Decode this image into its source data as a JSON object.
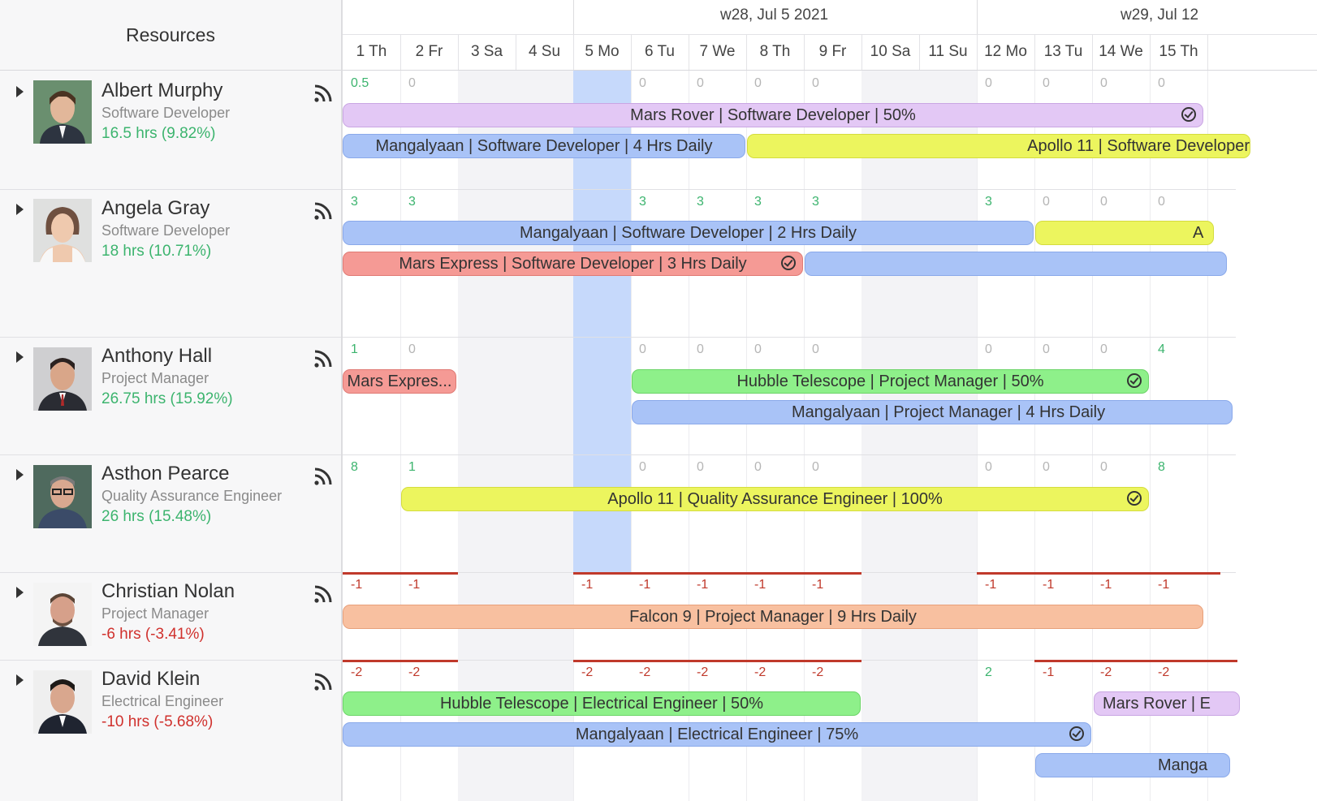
{
  "sidebar": {
    "header": "Resources"
  },
  "resources": [
    {
      "name": "Albert Murphy",
      "role": "Software Developer",
      "hours": "16.5 hrs (9.82%)",
      "hours_color": "#3cb46e"
    },
    {
      "name": "Angela Gray",
      "role": "Software Developer",
      "hours": "18 hrs (10.71%)",
      "hours_color": "#3cb46e"
    },
    {
      "name": "Anthony Hall",
      "role": "Project Manager",
      "hours": "26.75 hrs (15.92%)",
      "hours_color": "#3cb46e"
    },
    {
      "name": "Asthon Pearce",
      "role": "Quality Assurance Engineer",
      "hours": "26 hrs (15.48%)",
      "hours_color": "#3cb46e"
    },
    {
      "name": "Christian Nolan",
      "role": "Project Manager",
      "hours": "-6 hrs (-3.41%)",
      "hours_color": "#d0312d"
    },
    {
      "name": "David Klein",
      "role": "Electrical Engineer",
      "hours": "-10 hrs (-5.68%)",
      "hours_color": "#d0312d"
    }
  ],
  "weeks": [
    "w28, Jul 5 2021",
    "w29, Jul 12"
  ],
  "days": [
    "1 Th",
    "2 Fr",
    "3 Sa",
    "4 Su",
    "5 Mo",
    "6 Tu",
    "7 We",
    "8 Th",
    "9 Fr",
    "10 Sa",
    "11 Su",
    "12 Mo",
    "13 Tu",
    "14 We",
    "15 Th"
  ],
  "capacity": [
    [
      "0.5",
      "0",
      "",
      "",
      "",
      "0",
      "0",
      "0",
      "0",
      "",
      "",
      "0",
      "0",
      "0",
      "0"
    ],
    [
      "3",
      "3",
      "",
      "",
      "",
      "3",
      "3",
      "3",
      "3",
      "",
      "",
      "3",
      "0",
      "0",
      "0"
    ],
    [
      "1",
      "0",
      "",
      "",
      "",
      "0",
      "0",
      "0",
      "0",
      "",
      "",
      "0",
      "0",
      "0",
      "4"
    ],
    [
      "8",
      "1",
      "",
      "",
      "",
      "0",
      "0",
      "0",
      "0",
      "",
      "",
      "0",
      "0",
      "0",
      "8"
    ],
    [
      "-1",
      "-1",
      "",
      "",
      "-1",
      "-1",
      "-1",
      "-1",
      "-1",
      "",
      "",
      "-1",
      "-1",
      "-1",
      "-1"
    ],
    [
      "-2",
      "-2",
      "",
      "",
      "-2",
      "-2",
      "-2",
      "-2",
      "-2",
      "",
      "",
      "2",
      "-1",
      "-2",
      "-2"
    ]
  ],
  "assignments": {
    "albert_1": "Mars Rover | Software Developer | 50%",
    "albert_2": "Mangalyaan | Software Developer | 4 Hrs Daily",
    "albert_3": "Apollo 11 | Software Developer",
    "angela_1": "Mangalyaan | Software Developer | 2 Hrs Daily",
    "angela_2": "A",
    "angela_3": "Mars Express | Software Developer | 3 Hrs Daily",
    "anthony_1": "Mars Expres...",
    "anthony_2": "Hubble Telescope | Project Manager | 50%",
    "anthony_3": "Mangalyaan | Project Manager | 4 Hrs Daily",
    "asthon_1": "Apollo 11 | Quality Assurance Engineer | 100%",
    "christian_1": "Falcon 9 | Project Manager | 9 Hrs Daily",
    "david_1": "Hubble Telescope | Electrical Engineer | 50%",
    "david_2": "Mars Rover | E",
    "david_3": "Mangalyaan | Electrical Engineer | 75%",
    "david_4": "Manga"
  },
  "colors": {
    "purple": "#e3c8f5",
    "blue": "#a9c3f7",
    "yellow": "#ecf55e",
    "red": "#f59a95",
    "green": "#8ef08a",
    "orange": "#f8c0a0"
  }
}
